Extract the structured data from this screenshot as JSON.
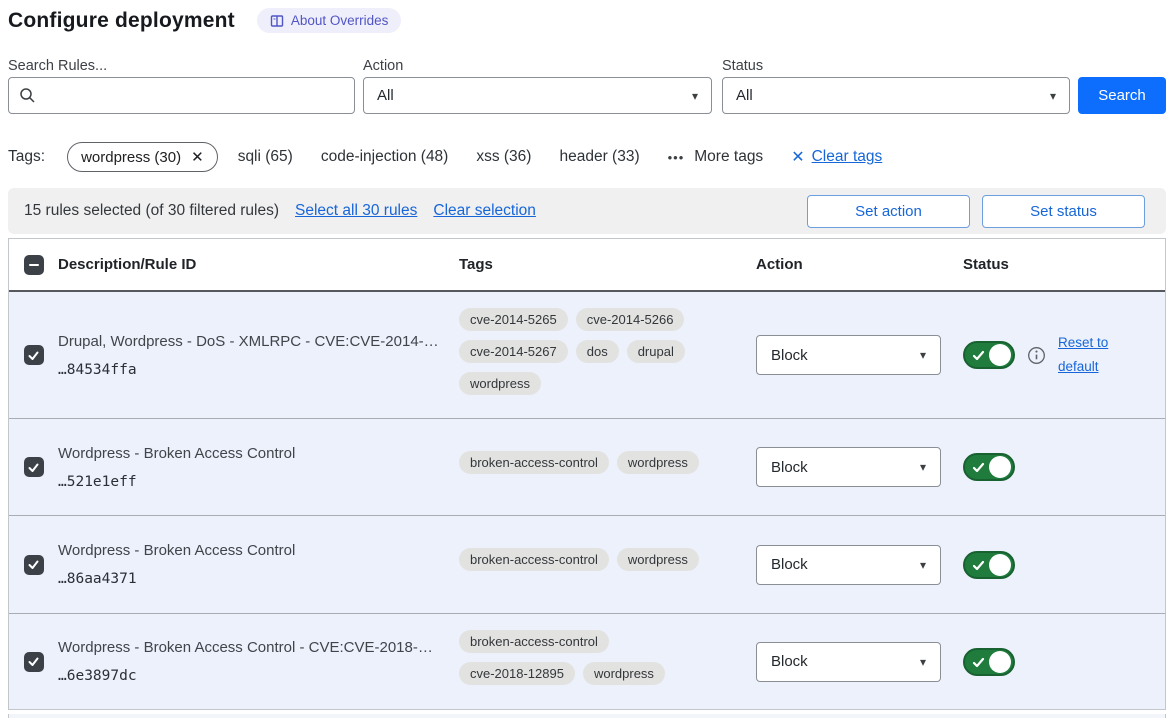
{
  "title": "Configure deployment",
  "about_badge": "About Overrides",
  "filters": {
    "search_label": "Search Rules...",
    "search_value": "",
    "action_label": "Action",
    "action_value": "All",
    "status_label": "Status",
    "status_value": "All",
    "search_button": "Search"
  },
  "tags_bar": {
    "label": "Tags:",
    "selected_tag": "wordpress (30)",
    "tags": [
      "sqli (65)",
      "code-injection (48)",
      "xss (36)",
      "header (33)"
    ],
    "more_tags": "More tags",
    "clear_tags": "Clear tags"
  },
  "selection_bar": {
    "summary": "15 rules selected (of 30 filtered rules)",
    "select_all": "Select all 30 rules",
    "clear_selection": "Clear selection",
    "set_action": "Set action",
    "set_status": "Set status"
  },
  "table": {
    "headers": {
      "description": "Description/Rule ID",
      "tags": "Tags",
      "action": "Action",
      "status": "Status"
    },
    "rows": [
      {
        "description": "Drupal, Wordpress - DoS - XMLRPC - CVE:CVE-2014-…",
        "rule_id": "…84534ffa",
        "tags": [
          "cve-2014-5265",
          "cve-2014-5266",
          "cve-2014-5267",
          "dos",
          "drupal",
          "wordpress"
        ],
        "action": "Block",
        "enabled": true,
        "selected": true,
        "reset_label": "Reset to default"
      },
      {
        "description": "Wordpress - Broken Access Control",
        "rule_id": "…521e1eff",
        "tags": [
          "broken-access-control",
          "wordpress"
        ],
        "action": "Block",
        "enabled": true,
        "selected": true
      },
      {
        "description": "Wordpress - Broken Access Control",
        "rule_id": "…86aa4371",
        "tags": [
          "broken-access-control",
          "wordpress"
        ],
        "action": "Block",
        "enabled": true,
        "selected": true
      },
      {
        "description": "Wordpress - Broken Access Control - CVE:CVE-2018-…",
        "rule_id": "…6e3897dc",
        "tags": [
          "broken-access-control",
          "cve-2018-12895",
          "wordpress"
        ],
        "action": "Block",
        "enabled": true,
        "selected": true
      }
    ]
  },
  "icons": {
    "dropdown_caret": "▾",
    "close": "✕",
    "more_dots": "•••"
  },
  "colors": {
    "accent_blue": "#0d6efd",
    "link_blue": "#1766d9",
    "toggle_green": "#1f7c3d",
    "row_bg": "#ecf1fc",
    "badge_purple": "#5155c5",
    "tag_gray": "#e2e2e0"
  }
}
